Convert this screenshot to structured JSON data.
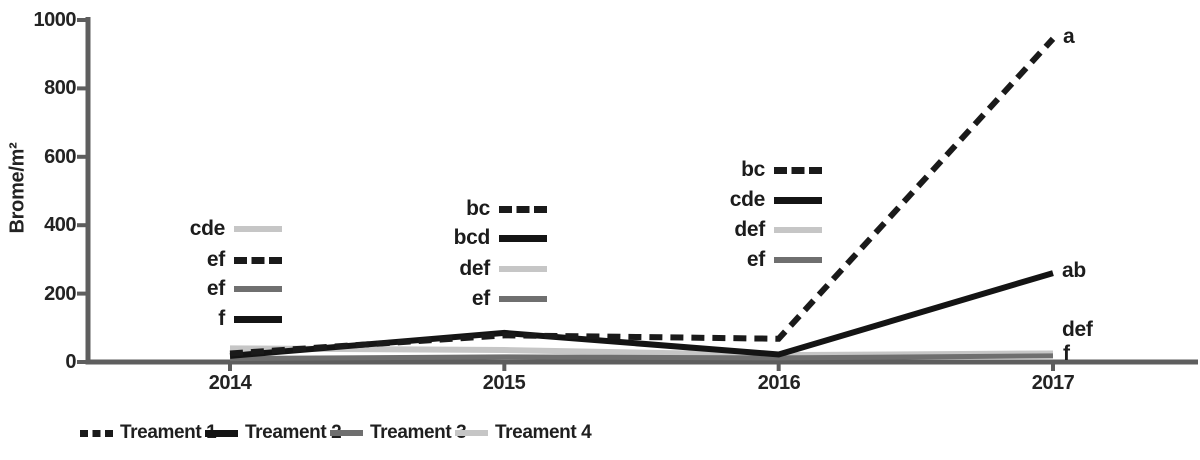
{
  "chart_data": {
    "type": "line",
    "title": "",
    "xlabel": "",
    "ylabel": "Brome/m²",
    "x_categories": [
      "2014",
      "2015",
      "2016",
      "2017"
    ],
    "ylim": [
      0,
      1000
    ],
    "ytick_labels": [
      "1000",
      "800",
      "600",
      "400",
      "200",
      "0"
    ],
    "grid": false,
    "legend_position": "bottom",
    "axis_color": "#5e5e5e",
    "text_color": "#1f1f1f",
    "series": [
      {
        "name": "Treament 1",
        "style": "dashed",
        "color": "#1a1a1a",
        "values": [
          25,
          78,
          68,
          945
        ]
      },
      {
        "name": "Treament 2",
        "style": "solid",
        "color": "#141414",
        "values": [
          18,
          85,
          22,
          260
        ]
      },
      {
        "name": "Treament 3",
        "style": "solid",
        "color": "#6f6f6f",
        "values": [
          10,
          15,
          12,
          18
        ]
      },
      {
        "name": "Treament 4",
        "style": "solid",
        "color": "#c6c6c6",
        "values": [
          40,
          35,
          20,
          25
        ]
      }
    ],
    "significance_groups": [
      {
        "year": "2014",
        "letters": [
          {
            "label": "cde",
            "series": "Treament 4"
          },
          {
            "label": "ef",
            "series": "Treament 1"
          },
          {
            "label": "ef",
            "series": "Treament 3"
          },
          {
            "label": "f",
            "series": "Treament 2"
          }
        ]
      },
      {
        "year": "2015",
        "letters": [
          {
            "label": "bc",
            "series": "Treament 1"
          },
          {
            "label": "bcd",
            "series": "Treament 2"
          },
          {
            "label": "def",
            "series": "Treament 4"
          },
          {
            "label": "ef",
            "series": "Treament 3"
          }
        ]
      },
      {
        "year": "2016",
        "letters": [
          {
            "label": "bc",
            "series": "Treament 1"
          },
          {
            "label": "cde",
            "series": "Treament 2"
          },
          {
            "label": "def",
            "series": "Treament 4"
          },
          {
            "label": "ef",
            "series": "Treament 3"
          }
        ]
      },
      {
        "year": "2017",
        "letters": [
          {
            "label": "a",
            "series": "Treament 1"
          },
          {
            "label": "ab",
            "series": "Treament 2"
          },
          {
            "label": "def",
            "series": "Treament 4"
          },
          {
            "label": "f",
            "series": "Treament 3"
          }
        ]
      }
    ]
  }
}
